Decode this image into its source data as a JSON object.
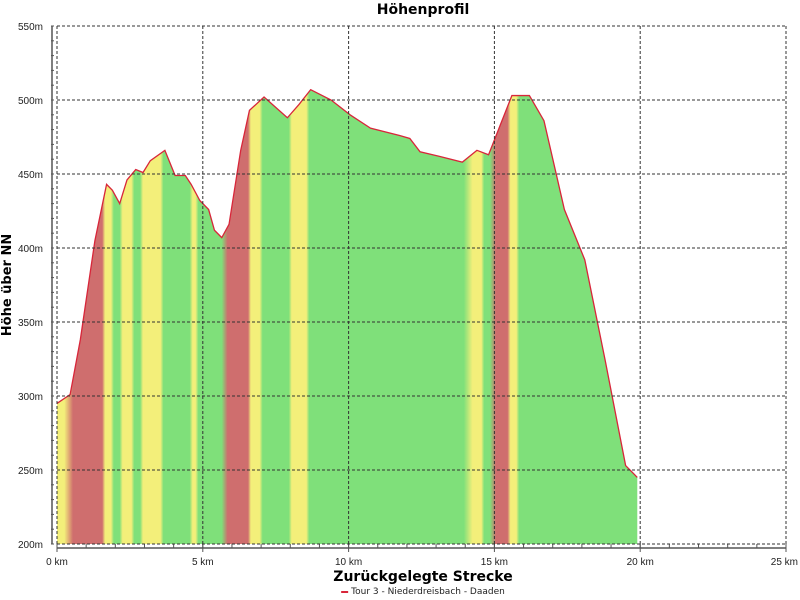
{
  "chart_data": {
    "type": "area",
    "title": "Höhenprofil",
    "xlabel": "Zurückgelegte Strecke",
    "ylabel": "Höhe über NN",
    "xlim": [
      0,
      25
    ],
    "ylim": [
      200,
      550
    ],
    "xticks": [
      0,
      5,
      10,
      15,
      20,
      25
    ],
    "xtick_labels": [
      "0 km",
      "5 km",
      "10 km",
      "15 km",
      "20 km",
      "25 km"
    ],
    "yticks": [
      200,
      250,
      300,
      350,
      400,
      450,
      500,
      550
    ],
    "ytick_labels": [
      "200m",
      "250m",
      "300m",
      "350m",
      "400m",
      "450m",
      "500m",
      "550m"
    ],
    "grid": true,
    "legend": {
      "position": "bottom",
      "entries": [
        "Tour 3 - Niederdreisbach - Daaden"
      ]
    },
    "series": [
      {
        "name": "Tour 3 - Niederdreisbach - Daaden",
        "color": "#d8263a",
        "x": [
          0,
          0.45,
          0.8,
          1.3,
          1.7,
          1.9,
          2.15,
          2.4,
          2.7,
          2.95,
          3.2,
          3.7,
          4.05,
          4.4,
          4.6,
          4.9,
          5.2,
          5.4,
          5.65,
          5.9,
          6.3,
          6.6,
          7.1,
          7.5,
          7.9,
          8.3,
          8.7,
          9.4,
          10.05,
          10.75,
          11.75,
          12.1,
          12.45,
          13.1,
          13.9,
          14.4,
          14.8,
          15.2,
          15.6,
          16.2,
          16.7,
          17.4,
          18.1,
          18.8,
          19.5,
          19.9
        ],
        "y": [
          295,
          301,
          338,
          405,
          443,
          439,
          430,
          446,
          453,
          451,
          459,
          466,
          449,
          449,
          443,
          432,
          426,
          412,
          407,
          416,
          466,
          493,
          502,
          495,
          488,
          497,
          507,
          500,
          490,
          481,
          476,
          474,
          465,
          462,
          458,
          466,
          463,
          483,
          503,
          503,
          486,
          426,
          392,
          324,
          253,
          245
        ]
      }
    ],
    "slope_colors": {
      "flat": "#7fe07a",
      "moderate": "#f3ef7a",
      "steep": "#cf6e6e",
      "bands": [
        [
          0,
          0.3,
          "moderate"
        ],
        [
          0.5,
          1.6,
          "steep"
        ],
        [
          1.6,
          1.9,
          "moderate"
        ],
        [
          1.9,
          2.2,
          "flat"
        ],
        [
          2.2,
          2.6,
          "moderate"
        ],
        [
          2.6,
          2.9,
          "flat"
        ],
        [
          2.9,
          3.2,
          "moderate"
        ],
        [
          3.2,
          3.6,
          "moderate"
        ],
        [
          3.6,
          4.6,
          "flat"
        ],
        [
          4.6,
          4.8,
          "moderate"
        ],
        [
          4.8,
          5.7,
          "flat"
        ],
        [
          5.8,
          6.6,
          "steep"
        ],
        [
          6.6,
          7.0,
          "moderate"
        ],
        [
          7.0,
          8.0,
          "flat"
        ],
        [
          8.0,
          8.6,
          "moderate"
        ],
        [
          8.6,
          14.0,
          "flat"
        ],
        [
          14.2,
          14.6,
          "moderate"
        ],
        [
          14.6,
          14.9,
          "flat"
        ],
        [
          15.0,
          15.5,
          "steep"
        ],
        [
          15.5,
          15.8,
          "moderate"
        ],
        [
          15.8,
          20,
          "flat"
        ]
      ]
    }
  }
}
